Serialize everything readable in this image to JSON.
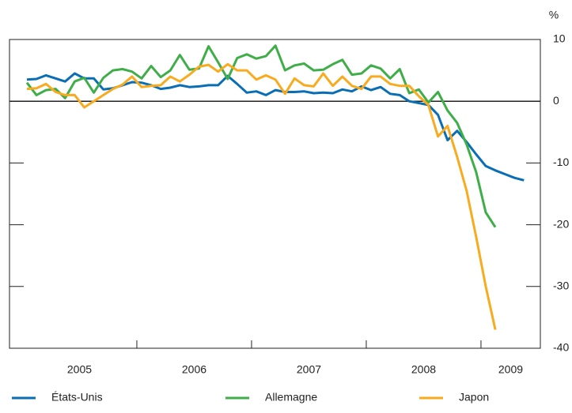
{
  "chart_data": {
    "type": "line",
    "ylabel": "%",
    "categories": [
      "2005",
      null,
      null,
      null,
      null,
      null,
      null,
      null,
      null,
      null,
      null,
      null,
      "2006",
      null,
      null,
      null,
      null,
      null,
      null,
      null,
      null,
      null,
      null,
      null,
      "2007",
      null,
      null,
      null,
      null,
      null,
      null,
      null,
      null,
      null,
      null,
      null,
      "2008",
      null,
      null,
      null,
      null,
      null,
      null,
      null,
      null,
      null,
      null,
      null,
      "2009",
      null,
      null,
      null,
      null
    ],
    "series": [
      {
        "name": "États-Unis",
        "color": "#0a6eb4",
        "values": [
          3.5,
          3.6,
          4.2,
          3.7,
          3.2,
          4.5,
          3.7,
          3.7,
          1.9,
          2.1,
          2.6,
          3.1,
          3.0,
          2.6,
          2.0,
          2.2,
          2.6,
          2.3,
          2.4,
          2.6,
          2.6,
          4.1,
          2.8,
          1.4,
          1.6,
          1.0,
          1.8,
          1.5,
          1.5,
          1.6,
          1.3,
          1.4,
          1.3,
          1.9,
          1.6,
          2.4,
          1.8,
          2.3,
          1.2,
          1.0,
          0.0,
          -0.3,
          -0.6,
          -2.2,
          -6.3,
          -4.8,
          -6.6,
          -8.6,
          -10.5,
          -11.2,
          -11.8,
          -12.4,
          -12.8
        ]
      },
      {
        "name": "Allemagne",
        "color": "#3fae49",
        "values": [
          3.0,
          1.0,
          1.8,
          2.0,
          0.5,
          3.2,
          3.8,
          1.4,
          3.8,
          5.0,
          5.2,
          4.8,
          3.7,
          5.7,
          3.9,
          5.0,
          7.5,
          5.1,
          5.3,
          8.9,
          6.3,
          3.6,
          7.0,
          7.6,
          6.9,
          7.3,
          9.0,
          5.0,
          5.8,
          6.1,
          5.0,
          5.1,
          6.0,
          6.7,
          4.3,
          4.5,
          5.8,
          5.3,
          3.7,
          5.2,
          1.3,
          1.9,
          -0.2,
          1.5,
          -1.5,
          -3.5,
          -7.0,
          -11.5,
          -18.0,
          -20.4,
          null,
          null,
          null
        ]
      },
      {
        "name": "Japon",
        "color": "#f8ab1e",
        "values": [
          2.0,
          2.1,
          2.8,
          1.5,
          1.0,
          1.0,
          -1.0,
          0.0,
          1.0,
          2.0,
          2.7,
          4.0,
          2.3,
          2.5,
          2.6,
          4.0,
          3.2,
          4.3,
          5.6,
          5.9,
          4.8,
          6.0,
          5.0,
          5.0,
          3.5,
          4.2,
          3.5,
          1.2,
          3.7,
          2.6,
          2.4,
          4.5,
          2.5,
          4.0,
          2.5,
          2.0,
          4.0,
          4.0,
          2.8,
          2.5,
          2.5,
          0.8,
          -0.6,
          -5.7,
          -4.0,
          -9.0,
          -14.5,
          -22.0,
          -30.0,
          -37.0,
          null,
          null,
          null
        ]
      }
    ],
    "ylim": [
      -40,
      10
    ],
    "yticks": [
      -40,
      -30,
      -20,
      -10,
      0,
      10
    ],
    "legend": "bottom"
  }
}
